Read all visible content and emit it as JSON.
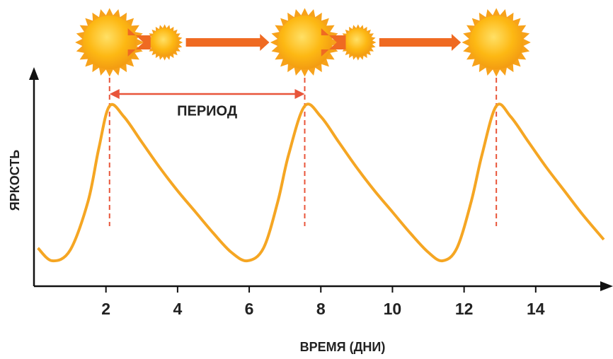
{
  "chart_data": {
    "type": "line",
    "x_label": "ВРЕМЯ (ДНИ)",
    "y_label": "ЯРКОСТЬ",
    "annotation": "ПЕРИОД",
    "xlim": [
      0,
      16
    ],
    "ylim": [
      0,
      1
    ],
    "xticks": [
      2,
      4,
      6,
      8,
      10,
      12,
      14
    ],
    "series": [
      {
        "color": "#f5a623",
        "x": [
          0.1,
          0.5,
          1.0,
          1.5,
          1.8,
          2.1,
          2.5,
          3,
          3.5,
          4,
          4.5,
          5,
          5.5,
          5.95,
          6.4,
          6.8,
          7.1,
          7.55,
          8,
          8.5,
          9,
          9.5,
          10,
          10.5,
          11,
          11.4,
          11.8,
          12.2,
          12.5,
          12.9,
          13.3,
          13.8,
          14.3,
          14.8,
          15.3,
          15.9
        ],
        "values": [
          0.18,
          0.12,
          0.17,
          0.4,
          0.65,
          0.85,
          0.8,
          0.68,
          0.56,
          0.45,
          0.35,
          0.25,
          0.16,
          0.12,
          0.18,
          0.4,
          0.62,
          0.85,
          0.8,
          0.68,
          0.56,
          0.45,
          0.35,
          0.25,
          0.16,
          0.12,
          0.18,
          0.4,
          0.62,
          0.85,
          0.8,
          0.68,
          0.56,
          0.45,
          0.34,
          0.22
        ]
      }
    ]
  }
}
